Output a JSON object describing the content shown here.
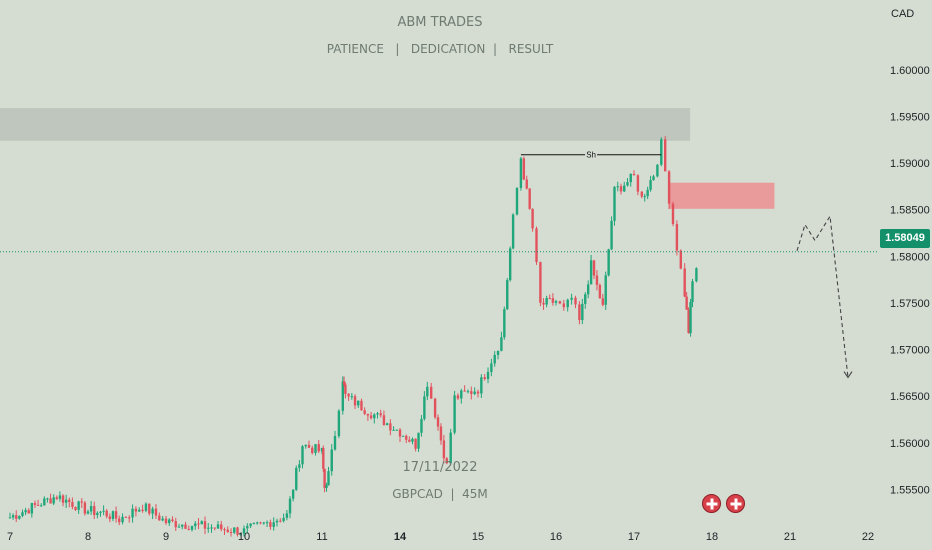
{
  "watermark": {
    "title": "ABM TRADES",
    "subtitle": "PATIENCE   |   DEDICATION  |   RESULT",
    "date": "17/11/2022",
    "symbol": "GBPCAD  |  45M"
  },
  "currency": "CAD",
  "colors": {
    "background": "#d5ddd3",
    "up": "#1fa67a",
    "down": "#e2525c",
    "supply_zone": "#bfc6bd",
    "order_block": "#e99a9a",
    "last_price": "#13906a"
  },
  "chart_data": {
    "type": "candlestick",
    "symbol": "GBPCAD",
    "timeframe": "45M",
    "ylim": [
      1.5515,
      1.6075
    ],
    "y_ticks": [
      "1.60000",
      "1.59500",
      "1.59000",
      "1.58500",
      "1.58000",
      "1.57500",
      "1.57000",
      "1.56500",
      "1.56000",
      "1.55500"
    ],
    "x_ticks": [
      "7",
      "8",
      "9",
      "10",
      "11",
      "14",
      "15",
      "16",
      "17",
      "18",
      "21",
      "22"
    ],
    "last_price": "1.58049",
    "annotations": {
      "swing_high_label": "Sh",
      "swing_high_price": 1.5909
    },
    "zones": [
      {
        "name": "supply-zone",
        "from": 1.5924,
        "to": 1.5959
      },
      {
        "name": "order-block",
        "from": 1.5851,
        "to": 1.5879
      }
    ],
    "projection": [
      1.5806,
      1.5834,
      1.5817,
      1.5843,
      1.567
    ],
    "path": [
      [
        "7",
        1.552
      ],
      [
        "7.6",
        1.5543
      ],
      [
        "8",
        1.5527
      ],
      [
        "8.2",
        1.5525
      ],
      [
        "8.4",
        1.5518
      ],
      [
        "8.7",
        1.5532
      ],
      [
        "9",
        1.5515
      ],
      [
        "10",
        1.5505
      ],
      [
        "10.55",
        1.5522
      ],
      [
        "10.75",
        1.5598
      ],
      [
        "11",
        1.559
      ],
      [
        "11.1",
        1.5552
      ],
      [
        "11.25",
        1.5566
      ],
      [
        "11.5",
        1.561
      ],
      [
        "11.8",
        1.567
      ],
      [
        "11.9",
        1.565
      ],
      [
        "14",
        1.5612
      ],
      [
        "14.2",
        1.5598
      ],
      [
        "14.35",
        1.5665
      ],
      [
        "14.45",
        1.5632
      ],
      [
        "14.6",
        1.5575
      ],
      [
        "14.7",
        1.5648
      ],
      [
        "15",
        1.5658
      ],
      [
        "15.3",
        1.5712
      ],
      [
        "15.45",
        1.584
      ],
      [
        "15.55",
        1.5906
      ],
      [
        "15.7",
        1.583
      ],
      [
        "15.8",
        1.5748
      ],
      [
        "16",
        1.5752
      ],
      [
        "16.1",
        1.5742
      ],
      [
        "16.2",
        1.5755
      ],
      [
        "16.3",
        1.573
      ],
      [
        "16.45",
        1.579
      ],
      [
        "16.6",
        1.5745
      ],
      [
        "16.75",
        1.587
      ],
      [
        "17",
        1.5885
      ],
      [
        "17.1",
        1.5862
      ],
      [
        "17.25",
        1.5888
      ],
      [
        "17.35",
        1.592
      ],
      [
        "17.45",
        1.5862
      ],
      [
        "17.55",
        1.581
      ],
      [
        "17.65",
        1.576
      ],
      [
        "17.7",
        1.572
      ],
      [
        "17.75",
        1.5772
      ],
      [
        "17.85",
        1.5805
      ]
    ]
  }
}
